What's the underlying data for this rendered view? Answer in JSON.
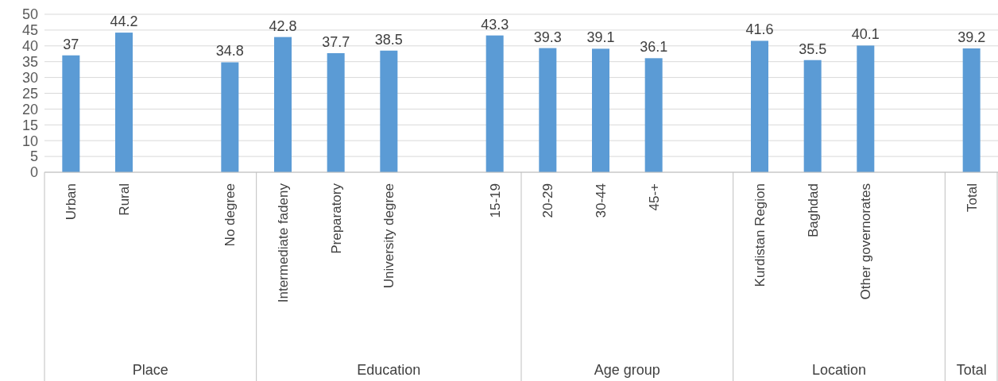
{
  "chart_data": {
    "type": "bar",
    "categories": [
      "Urban",
      "Rural",
      null,
      "No degree",
      "Intermediate fadeny",
      "Preparatory",
      "University degree",
      null,
      "15-19",
      "20-29",
      "30-44",
      "45-+",
      null,
      "Kurdistan Region",
      "Baghdad",
      "Other governorates",
      null,
      "Total"
    ],
    "values": [
      37,
      44.2,
      null,
      34.8,
      42.8,
      37.7,
      38.5,
      null,
      43.3,
      39.3,
      39.1,
      36.1,
      null,
      41.6,
      35.5,
      40.1,
      null,
      39.2
    ],
    "color": "#5b9bd5",
    "ylim": [
      0,
      50
    ],
    "yticks": [
      0,
      5,
      10,
      15,
      20,
      25,
      30,
      35,
      40,
      45,
      50
    ],
    "grid": "y",
    "data_labels": true,
    "annotations": [
      "Place",
      "Education",
      "Age group",
      "Location",
      "Total"
    ]
  }
}
